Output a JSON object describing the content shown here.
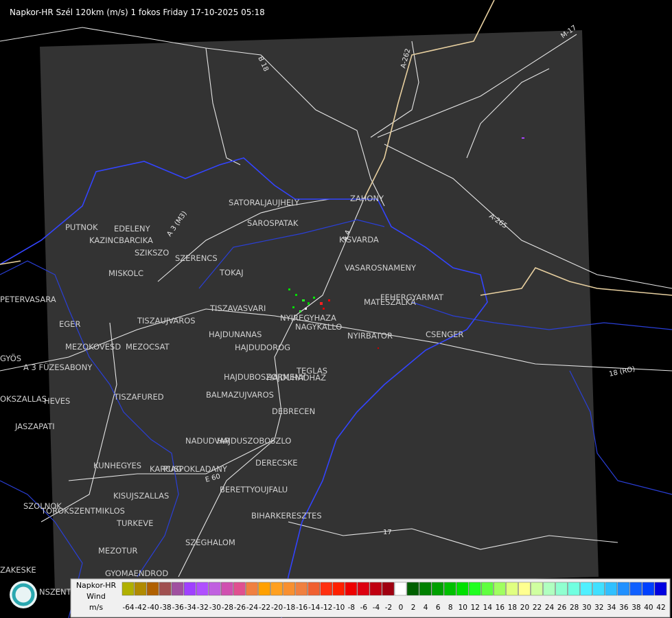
{
  "header": {
    "title": "Napkor-HR Szél 120km (m/s) 1 fokos Friday 17-10-2025 05:18"
  },
  "cities": [
    "SATORALJAUJHELY",
    "ZAHONY",
    "SAROSPATAK",
    "KISVARDA",
    "PUTNOK",
    "EDELENY",
    "KAZINCBARCIKA",
    "SZIKSZO",
    "SZERENCS",
    "MISKOLC",
    "TOKAJ",
    "VASAROSNAMENY",
    "FEHERGYARMAT",
    "MATESZALKA",
    "PETERVASARA",
    "EGER",
    "TISZAVASVARI",
    "TISZAUJVAROS",
    "NYIREGYHAZA",
    "NAGYKALLO",
    "HAJDUNANAS",
    "NYIRBATOR",
    "CSENGER",
    "HAJDUDOROG",
    "MEZOKOVESD",
    "MEZOCSAT",
    "GYÖS",
    "A 3 FÜZESABONY",
    "TEGLAS",
    "HAJDUBOSZORMENY",
    "HAJDUHADHAZ",
    "TISZAFURED",
    "BALMAZUJVAROS",
    "OKSZALLAS",
    "HEVES",
    "DEBRECEN",
    "JASZAPATI",
    "NADUDVAR",
    "HAJDUSZOBOSZLO",
    "DERECSKE",
    "KUNHEGYES",
    "KARCAG",
    "PUSPOKLADANY",
    "BERETTYOUJFALU",
    "KISUJSZALLAS",
    "SZOLNOK",
    "TOROKSZENTMIKLOS",
    "BIHARKERESZTES",
    "TURKEVE",
    "SZEGHALOM",
    "MEZOTUR",
    "ZAKESKE",
    "GYOMAENDROD",
    "NSZENTMIKLOS"
  ],
  "roads": [
    "B 18",
    "A-262",
    "M-17",
    "A-265",
    "18 (RO)",
    "17",
    "A 3 (M3)",
    "E 60",
    "A 4"
  ],
  "legend": {
    "title": "Napkor-HR",
    "variable": "Wind",
    "unit": "m/s",
    "items": [
      {
        "value": -64,
        "color": "#b0b000"
      },
      {
        "value": -42,
        "color": "#b08a00"
      },
      {
        "value": -40,
        "color": "#b06000"
      },
      {
        "value": -38,
        "color": "#a05050"
      },
      {
        "value": -36,
        "color": "#a050a0"
      },
      {
        "value": -34,
        "color": "#a040ff"
      },
      {
        "value": -32,
        "color": "#b050ff"
      },
      {
        "value": -30,
        "color": "#c060e0"
      },
      {
        "value": -28,
        "color": "#d050b0"
      },
      {
        "value": -26,
        "color": "#e05090"
      },
      {
        "value": -24,
        "color": "#f08040"
      },
      {
        "value": -22,
        "color": "#ffa000"
      },
      {
        "value": -20,
        "color": "#ffa020"
      },
      {
        "value": -18,
        "color": "#f89030"
      },
      {
        "value": -16,
        "color": "#f08040"
      },
      {
        "value": -14,
        "color": "#f06030"
      },
      {
        "value": -12,
        "color": "#ff3010"
      },
      {
        "value": -10,
        "color": "#ff2000"
      },
      {
        "value": -8,
        "color": "#ee0000"
      },
      {
        "value": -6,
        "color": "#dd0010"
      },
      {
        "value": -4,
        "color": "#c00010"
      },
      {
        "value": -2,
        "color": "#a00010"
      },
      {
        "value": 0,
        "color": "#ffffff"
      },
      {
        "value": 2,
        "color": "#006000"
      },
      {
        "value": 4,
        "color": "#008000"
      },
      {
        "value": 6,
        "color": "#00a000"
      },
      {
        "value": 8,
        "color": "#00c000"
      },
      {
        "value": 10,
        "color": "#00e000"
      },
      {
        "value": 12,
        "color": "#20ff20"
      },
      {
        "value": 14,
        "color": "#60ff40"
      },
      {
        "value": 16,
        "color": "#a0ff60"
      },
      {
        "value": 18,
        "color": "#e0ff80"
      },
      {
        "value": 20,
        "color": "#ffff90"
      },
      {
        "value": 22,
        "color": "#d0ffa0"
      },
      {
        "value": 24,
        "color": "#b0ffc0"
      },
      {
        "value": 26,
        "color": "#90ffd0"
      },
      {
        "value": 28,
        "color": "#70ffe0"
      },
      {
        "value": 30,
        "color": "#50f0ff"
      },
      {
        "value": 32,
        "color": "#40e0ff"
      },
      {
        "value": 34,
        "color": "#30c0ff"
      },
      {
        "value": 36,
        "color": "#2090ff"
      },
      {
        "value": 38,
        "color": "#1060ff"
      },
      {
        "value": 40,
        "color": "#0040ff"
      },
      {
        "value": 42,
        "color": "#0000e0"
      }
    ]
  }
}
